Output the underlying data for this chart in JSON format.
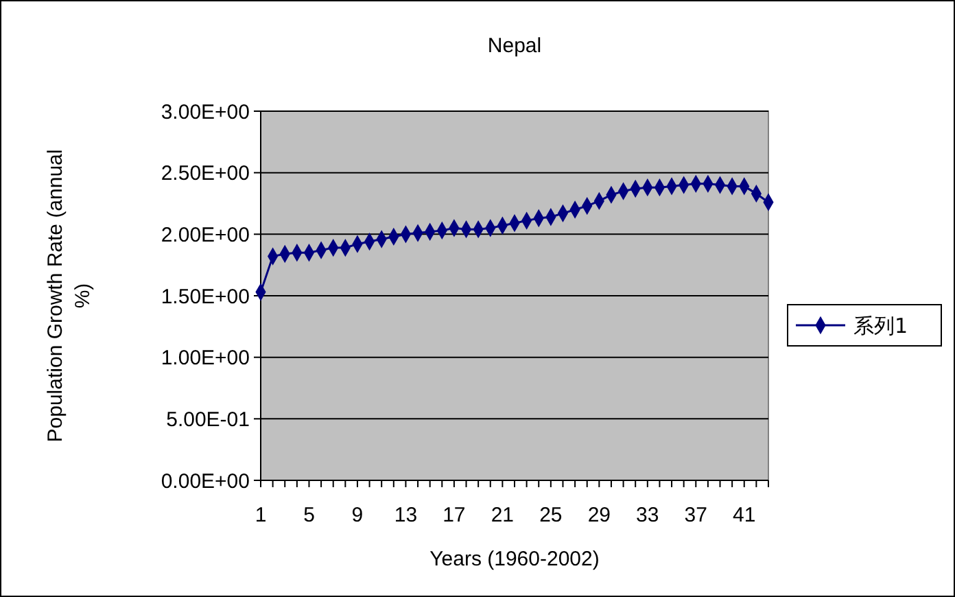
{
  "chart_data": {
    "type": "line",
    "title": "Nepal",
    "xlabel": "Years (1960-2002)",
    "ylabel": "Population Growth Rate (annual %)",
    "categories": [
      "1",
      null,
      null,
      null,
      "5",
      null,
      null,
      null,
      "9",
      null,
      null,
      null,
      "13",
      null,
      null,
      null,
      "17",
      null,
      null,
      null,
      "21",
      null,
      null,
      null,
      "25",
      null,
      null,
      null,
      "29",
      null,
      null,
      null,
      "33",
      null,
      null,
      null,
      "37",
      null,
      null,
      null,
      "41",
      null,
      null
    ],
    "series": [
      {
        "name": "系列1",
        "color": "#000080",
        "values": [
          1.53,
          1.82,
          1.84,
          1.85,
          1.85,
          1.87,
          1.89,
          1.89,
          1.92,
          1.94,
          1.96,
          1.98,
          2.0,
          2.01,
          2.02,
          2.03,
          2.05,
          2.04,
          2.04,
          2.05,
          2.07,
          2.09,
          2.11,
          2.13,
          2.14,
          2.17,
          2.2,
          2.23,
          2.27,
          2.32,
          2.35,
          2.37,
          2.38,
          2.38,
          2.39,
          2.4,
          2.41,
          2.41,
          2.4,
          2.39,
          2.39,
          2.33,
          2.26
        ]
      }
    ],
    "ylim": [
      0,
      3
    ],
    "yticks": [
      {
        "value": 0,
        "label": "0.00E+00"
      },
      {
        "value": 0.5,
        "label": "5.00E-01"
      },
      {
        "value": 1,
        "label": "1.00E+00"
      },
      {
        "value": 1.5,
        "label": "1.50E+00"
      },
      {
        "value": 2,
        "label": "2.00E+00"
      },
      {
        "value": 2.5,
        "label": "2.50E+00"
      },
      {
        "value": 3,
        "label": "3.00E+00"
      }
    ],
    "grid": "y",
    "legend": "right",
    "marker": "diamond",
    "line_style": "solid"
  }
}
